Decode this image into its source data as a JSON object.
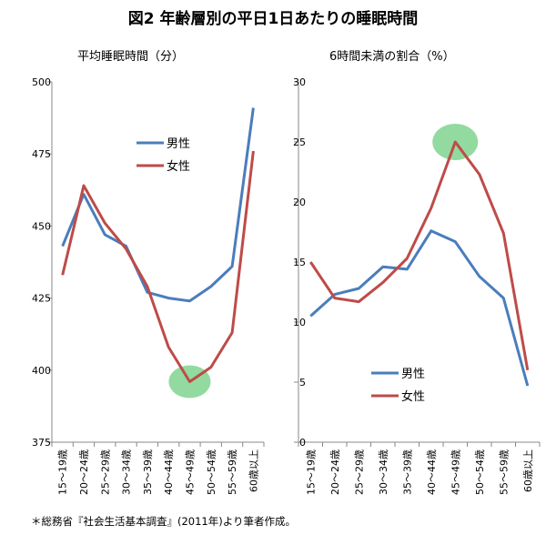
{
  "title": "図2 年齢層別の平日1日あたりの睡眠時間",
  "footnote": "＊総務省『社会生活基本調査』(2011年)より筆者作成。",
  "colors": {
    "male": "#4a7dbb",
    "female": "#be4b48",
    "highlight": "#7fd38f"
  },
  "chart_data": [
    {
      "type": "line",
      "title": "平均睡眠時間（分）",
      "categories": [
        "15〜19歳",
        "20〜24歳",
        "25〜29歳",
        "30〜34歳",
        "35〜39歳",
        "40〜44歳",
        "45〜49歳",
        "50〜54歳",
        "55〜59歳",
        "60歳以上"
      ],
      "series": [
        {
          "name": "男性",
          "values": [
            443,
            461,
            447,
            443,
            427,
            425,
            424,
            429,
            436,
            491
          ]
        },
        {
          "name": "女性",
          "values": [
            433,
            464,
            451,
            442,
            429,
            408,
            396,
            401,
            413,
            476
          ]
        }
      ],
      "ylim": [
        375,
        500
      ],
      "yticks": [
        375,
        400,
        425,
        450,
        475,
        500
      ],
      "highlight": {
        "category_index": 6,
        "value": 396
      },
      "legend": "top-right",
      "grid": false
    },
    {
      "type": "line",
      "title": "6時間未満の割合（%）",
      "categories": [
        "15〜19歳",
        "20〜24歳",
        "25〜29歳",
        "30〜34歳",
        "35〜39歳",
        "40〜44歳",
        "45〜49歳",
        "50〜54歳",
        "55〜59歳",
        "60歳以上"
      ],
      "series": [
        {
          "name": "男性",
          "values": [
            10.5,
            12.3,
            12.8,
            14.6,
            14.4,
            17.6,
            16.7,
            13.8,
            12.0,
            4.7
          ]
        },
        {
          "name": "女性",
          "values": [
            15.0,
            12.0,
            11.7,
            13.3,
            15.3,
            19.5,
            25.0,
            22.3,
            17.4,
            6.0
          ]
        }
      ],
      "ylim": [
        0,
        30
      ],
      "yticks": [
        0,
        5,
        10,
        15,
        20,
        25,
        30
      ],
      "highlight": {
        "category_index": 6,
        "value": 25.0
      },
      "legend": "bottom-right",
      "grid": false
    }
  ]
}
